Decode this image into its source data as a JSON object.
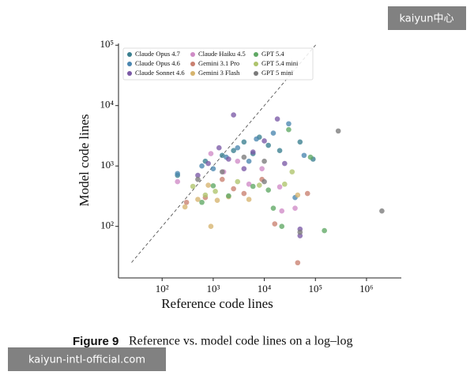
{
  "chart_data": {
    "type": "scatter",
    "xlabel": "Reference code lines",
    "ylabel": "Model code lines",
    "xscale": "log",
    "yscale": "log",
    "xlim": [
      14,
      4800000
    ],
    "ylim": [
      14,
      107000
    ],
    "xticks": [
      {
        "value": 100,
        "label": "10²"
      },
      {
        "value": 1000,
        "label": "10³"
      },
      {
        "value": 10000,
        "label": "10⁴"
      },
      {
        "value": 100000,
        "label": "10⁵"
      },
      {
        "value": 1000000,
        "label": "10⁶"
      }
    ],
    "yticks": [
      {
        "value": 100,
        "label": "10²"
      },
      {
        "value": 1000,
        "label": "10³"
      },
      {
        "value": 10000,
        "label": "10⁴"
      },
      {
        "value": 100000,
        "label": "10⁵"
      }
    ],
    "legend": "upper left",
    "series": [
      {
        "name": "Claude Opus 4.7",
        "color": "#3a7f8f",
        "x": [
          200,
          700,
          1500,
          2500,
          4000,
          6000,
          8000,
          12000,
          20000,
          50000,
          90000
        ],
        "values": [
          700,
          1200,
          1500,
          1800,
          2500,
          1600,
          3000,
          2200,
          1800,
          2500,
          1300
        ]
      },
      {
        "name": "Claude Opus 4.6",
        "color": "#4a86b0",
        "x": [
          200,
          600,
          1000,
          1800,
          3000,
          5000,
          7000,
          15000,
          30000,
          60000,
          40000
        ],
        "values": [
          750,
          1000,
          900,
          1400,
          2000,
          1200,
          2800,
          3500,
          5000,
          1500,
          300
        ]
      },
      {
        "name": "Claude Sonnet 4.6",
        "color": "#7b5aa6",
        "x": [
          500,
          800,
          1300,
          2000,
          2500,
          4000,
          6000,
          10000,
          18000,
          25000,
          50000,
          50000
        ],
        "values": [
          700,
          1100,
          2000,
          1300,
          7000,
          900,
          1700,
          2600,
          6000,
          1100,
          90,
          70
        ]
      },
      {
        "name": "Claude Haiku 4.5",
        "color": "#cf8bc6",
        "x": [
          200,
          900,
          1600,
          3000,
          5000,
          9000,
          20000,
          22000,
          40000
        ],
        "values": [
          550,
          1600,
          800,
          1200,
          500,
          900,
          450,
          180,
          200
        ]
      },
      {
        "name": "Gemini 3.1 Pro",
        "color": "#c98070",
        "x": [
          300,
          700,
          1500,
          2500,
          4000,
          9000,
          16000,
          45000,
          70000
        ],
        "values": [
          250,
          300,
          600,
          420,
          350,
          600,
          110,
          25,
          350
        ]
      },
      {
        "name": "Gemini 3 Flash",
        "color": "#d6b46e",
        "x": [
          280,
          500,
          800,
          1200,
          2000,
          5000,
          45000,
          900
        ],
        "values": [
          210,
          280,
          480,
          270,
          310,
          280,
          330,
          100
        ]
      },
      {
        "name": "GPT 5.4",
        "color": "#5fa864",
        "x": [
          600,
          1000,
          2000,
          6000,
          12000,
          15000,
          22000,
          30000,
          80000,
          150000
        ],
        "values": [
          250,
          470,
          320,
          460,
          400,
          200,
          100,
          4000,
          1400,
          85
        ]
      },
      {
        "name": "GPT 5.4 mini",
        "color": "#aec46c",
        "x": [
          400,
          700,
          1100,
          3000,
          8000,
          25000,
          35000
        ],
        "values": [
          460,
          330,
          380,
          550,
          480,
          500,
          800
        ]
      },
      {
        "name": "GPT 5 mini",
        "color": "#7a7a7a",
        "x": [
          500,
          1500,
          4000,
          10000,
          280000,
          2000000,
          50000,
          10000
        ],
        "values": [
          600,
          800,
          1400,
          1200,
          3800,
          180,
          80,
          550
        ]
      }
    ]
  },
  "caption": {
    "label": "Figure 9",
    "text": "Reference vs. model code lines on a log–log"
  },
  "watermarks": [
    "kaiyun中心",
    "kaiyun-intl-official.com"
  ]
}
